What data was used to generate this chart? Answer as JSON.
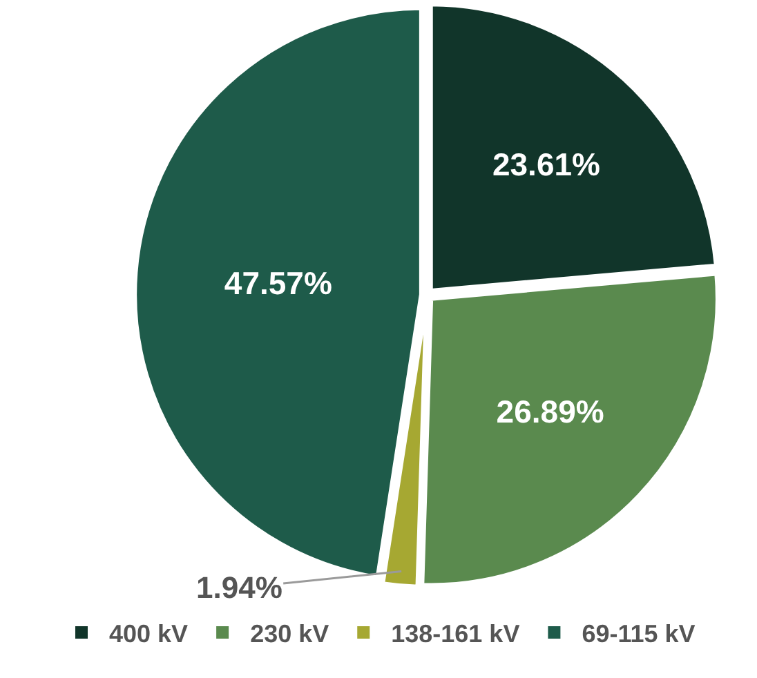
{
  "chart_data": {
    "type": "pie",
    "categories": [
      "400 kV",
      "230 kV",
      "138-161 kV",
      "69-115 kV"
    ],
    "values": [
      23.61,
      26.89,
      1.94,
      47.57
    ],
    "colors": [
      "#11352a",
      "#5a8a4e",
      "#a6a832",
      "#1e5b4a"
    ],
    "value_labels": [
      "23.61%",
      "26.89%",
      "1.94%",
      "47.57%"
    ],
    "legend": "bottom"
  }
}
